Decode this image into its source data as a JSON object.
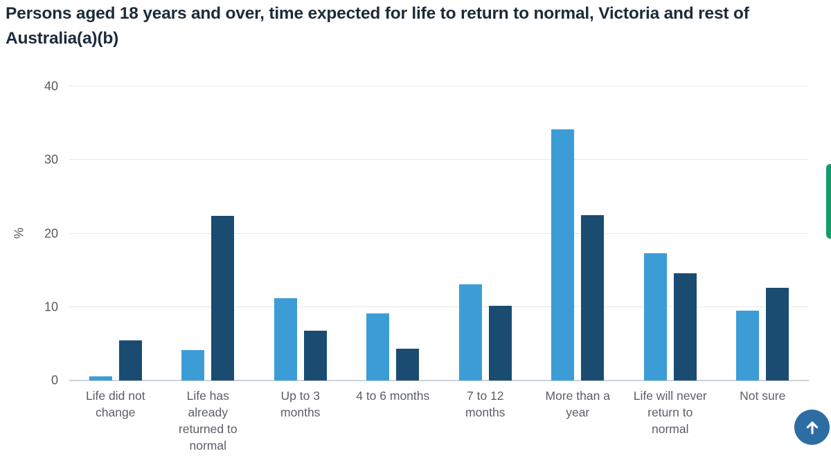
{
  "page": {
    "title": "Persons aged 18 years and over, time expected for life to return to normal, Victoria and rest of Australia(a)(b)"
  },
  "chart_data": {
    "type": "bar",
    "title": "Persons aged 18 years and over, time expected for life to return to normal, Victoria and rest of Australia(a)(b)",
    "categories": [
      "Life did not change",
      "Life has already returned to normal",
      "Up to 3 months",
      "4 to 6 months",
      "7 to 12 months",
      "More than a year",
      "Life will never return to normal",
      "Not sure"
    ],
    "series": [
      {
        "name": "Victoria",
        "color": "#3C9DD6",
        "values": [
          0.6,
          4.1,
          11.2,
          9.1,
          13.1,
          34.2,
          17.3,
          9.5
        ]
      },
      {
        "name": "Rest of Australia",
        "color": "#1A4C72",
        "values": [
          5.5,
          22.4,
          6.8,
          4.3,
          10.2,
          22.5,
          14.6,
          12.6
        ]
      }
    ],
    "xlabel": "",
    "ylabel": "%",
    "ylim": [
      0,
      40
    ],
    "yticks": [
      0,
      10,
      20,
      30,
      40
    ],
    "grid": true,
    "legend_position": "none"
  },
  "widgets": {
    "feedback_tab_color": "#159A6A",
    "scroll_top_button_color": "#2D6DA3",
    "scroll_top_icon": "up-arrow"
  }
}
